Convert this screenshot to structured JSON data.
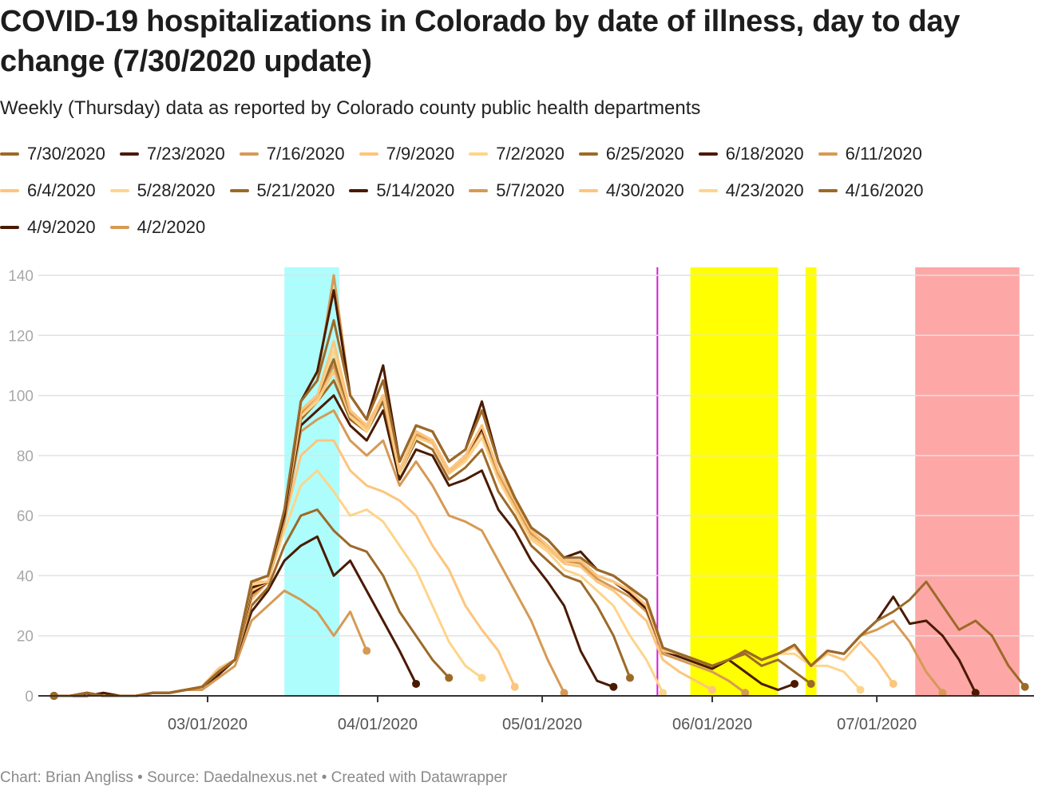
{
  "footer": "Chart: Brian Angliss • Source: Daedalnexus.net • Created with Datawrapper",
  "chart_data": {
    "type": "line",
    "title": "COVID-19 hospitalizations in Colorado by date of illness, day to day change (7/30/2020 update)",
    "subtitle": "Weekly (Thursday) data as reported by Colorado county public health departments",
    "x_start": "2020-02-02",
    "x_step_days": 3,
    "ylim": [
      0,
      140
    ],
    "y_ticks": [
      0,
      20,
      40,
      60,
      80,
      100,
      120,
      140
    ],
    "x_ticks": [
      {
        "date": "2020-03-01",
        "label": "03/01/2020"
      },
      {
        "date": "2020-04-01",
        "label": "04/01/2020"
      },
      {
        "date": "2020-05-01",
        "label": "05/01/2020"
      },
      {
        "date": "2020-06-01",
        "label": "06/01/2020"
      },
      {
        "date": "2020-07-01",
        "label": "07/01/2020"
      }
    ],
    "grid": true,
    "legend_position": "top",
    "highlights": [
      {
        "from": "2020-03-15",
        "to": "2020-03-25",
        "color": "#adfdfd"
      },
      {
        "from": "2020-05-28",
        "to": "2020-06-13",
        "color": "#ffff00"
      },
      {
        "from": "2020-06-18",
        "to": "2020-06-20",
        "color": "#ffff00"
      },
      {
        "from": "2020-07-08",
        "to": "2020-07-27",
        "color": "#fea7a7"
      }
    ],
    "markers": [
      {
        "date": "2020-05-22",
        "color": "#d81bd8"
      }
    ],
    "series": [
      {
        "name": "7/30/2020",
        "color": "#9c6a28",
        "values": [
          0,
          0,
          1,
          0,
          0,
          0,
          1,
          1,
          2,
          3,
          8,
          12,
          38,
          40,
          62,
          98,
          105,
          125,
          100,
          92,
          105,
          78,
          90,
          88,
          78,
          82,
          95,
          78,
          66,
          56,
          52,
          46,
          46,
          42,
          40,
          36,
          32,
          16,
          14,
          12,
          10,
          12,
          15,
          12,
          14,
          17,
          10,
          15,
          14,
          20,
          25,
          28,
          32,
          38,
          30,
          22,
          25,
          20,
          10,
          3
        ]
      },
      {
        "name": "7/23/2020",
        "color": "#4a1a00",
        "values": [
          0,
          0,
          1,
          0,
          0,
          0,
          1,
          1,
          2,
          3,
          8,
          12,
          38,
          40,
          60,
          98,
          108,
          135,
          100,
          92,
          110,
          78,
          90,
          88,
          78,
          82,
          98,
          78,
          66,
          56,
          52,
          46,
          48,
          42,
          40,
          36,
          32,
          16,
          14,
          12,
          10,
          12,
          15,
          12,
          14,
          17,
          10,
          15,
          14,
          20,
          25,
          33,
          24,
          25,
          20,
          12,
          1
        ]
      },
      {
        "name": "7/16/2020",
        "color": "#d69a55",
        "values": [
          0,
          0,
          1,
          0,
          0,
          0,
          1,
          1,
          2,
          3,
          8,
          12,
          38,
          40,
          60,
          98,
          105,
          140,
          100,
          92,
          105,
          78,
          90,
          88,
          78,
          82,
          95,
          78,
          66,
          56,
          52,
          46,
          46,
          42,
          40,
          36,
          32,
          16,
          14,
          12,
          10,
          12,
          15,
          12,
          14,
          17,
          10,
          15,
          14,
          20,
          22,
          25,
          18,
          8,
          1
        ]
      },
      {
        "name": "7/9/2020",
        "color": "#fdc57d",
        "values": [
          0,
          0,
          1,
          0,
          0,
          0,
          1,
          1,
          2,
          3,
          8,
          12,
          38,
          38,
          60,
          95,
          100,
          118,
          95,
          90,
          100,
          75,
          88,
          85,
          75,
          80,
          90,
          75,
          65,
          55,
          50,
          45,
          45,
          40,
          38,
          35,
          30,
          15,
          14,
          12,
          10,
          12,
          15,
          12,
          14,
          16,
          10,
          14,
          12,
          18,
          12,
          4
        ]
      },
      {
        "name": "7/2/2020",
        "color": "#fdd58a",
        "values": [
          0,
          0,
          1,
          0,
          0,
          0,
          1,
          1,
          2,
          3,
          8,
          12,
          37,
          38,
          60,
          95,
          100,
          115,
          95,
          90,
          100,
          75,
          88,
          85,
          75,
          80,
          90,
          75,
          65,
          55,
          50,
          45,
          45,
          40,
          38,
          35,
          30,
          15,
          14,
          12,
          10,
          12,
          15,
          12,
          14,
          14,
          10,
          10,
          8,
          2
        ]
      },
      {
        "name": "6/25/2020",
        "color": "#9c6a28",
        "values": [
          0,
          0,
          1,
          0,
          0,
          0,
          1,
          1,
          2,
          3,
          8,
          12,
          37,
          38,
          60,
          95,
          100,
          112,
          95,
          90,
          100,
          75,
          88,
          85,
          75,
          80,
          90,
          75,
          65,
          55,
          50,
          45,
          45,
          40,
          38,
          35,
          30,
          15,
          14,
          12,
          10,
          12,
          14,
          10,
          12,
          8,
          4
        ]
      },
      {
        "name": "6/18/2020",
        "color": "#4a1a00",
        "values": [
          0,
          0,
          1,
          0,
          0,
          0,
          1,
          1,
          2,
          3,
          8,
          12,
          36,
          38,
          60,
          95,
          100,
          112,
          95,
          90,
          100,
          75,
          88,
          85,
          75,
          80,
          89,
          75,
          65,
          55,
          50,
          45,
          45,
          40,
          38,
          34,
          29,
          15,
          13,
          11,
          9,
          12,
          8,
          4,
          2,
          4
        ]
      },
      {
        "name": "6/11/2020",
        "color": "#d69a55",
        "values": [
          0,
          0,
          1,
          0,
          0,
          0,
          1,
          1,
          2,
          3,
          8,
          12,
          36,
          38,
          60,
          94,
          100,
          110,
          94,
          90,
          100,
          75,
          87,
          85,
          75,
          80,
          88,
          74,
          64,
          54,
          50,
          45,
          44,
          39,
          36,
          33,
          28,
          14,
          12,
          10,
          8,
          5,
          1
        ]
      },
      {
        "name": "6/4/2020",
        "color": "#fdc57d",
        "values": [
          0,
          0,
          1,
          0,
          0,
          0,
          1,
          1,
          2,
          3,
          9,
          12,
          35,
          38,
          60,
          94,
          99,
          108,
          94,
          89,
          100,
          75,
          87,
          84,
          74,
          79,
          88,
          73,
          63,
          53,
          49,
          44,
          43,
          38,
          35,
          30,
          25,
          12,
          8,
          5,
          2
        ]
      },
      {
        "name": "5/28/2020",
        "color": "#fdd58a",
        "values": [
          0,
          0,
          1,
          0,
          0,
          0,
          1,
          1,
          2,
          3,
          9,
          12,
          35,
          38,
          60,
          93,
          98,
          108,
          93,
          88,
          100,
          74,
          86,
          84,
          74,
          78,
          86,
          72,
          62,
          52,
          48,
          42,
          40,
          35,
          30,
          20,
          12,
          1
        ]
      },
      {
        "name": "5/21/2020",
        "color": "#9c6a28",
        "values": [
          0,
          0,
          1,
          0,
          0,
          0,
          1,
          1,
          2,
          3,
          9,
          12,
          35,
          38,
          60,
          92,
          98,
          105,
          92,
          88,
          98,
          74,
          85,
          82,
          72,
          76,
          82,
          68,
          60,
          50,
          45,
          40,
          38,
          30,
          20,
          6
        ]
      },
      {
        "name": "5/14/2020",
        "color": "#4a1a00",
        "values": [
          0,
          0,
          1,
          0,
          0,
          0,
          1,
          1,
          2,
          3,
          9,
          12,
          34,
          38,
          60,
          90,
          95,
          100,
          90,
          85,
          95,
          72,
          82,
          80,
          70,
          72,
          75,
          62,
          55,
          45,
          38,
          30,
          15,
          5,
          3
        ]
      },
      {
        "name": "5/7/2020",
        "color": "#d69a55",
        "values": [
          0,
          0,
          1,
          0,
          0,
          0,
          1,
          1,
          2,
          3,
          9,
          12,
          33,
          38,
          58,
          88,
          92,
          95,
          85,
          80,
          85,
          70,
          78,
          70,
          60,
          58,
          55,
          45,
          35,
          25,
          12,
          1
        ]
      },
      {
        "name": "4/30/2020",
        "color": "#fdc57d",
        "values": [
          0,
          0,
          1,
          0,
          0,
          0,
          1,
          1,
          2,
          3,
          8,
          12,
          32,
          38,
          58,
          80,
          85,
          85,
          75,
          70,
          68,
          65,
          60,
          50,
          42,
          30,
          22,
          15,
          3
        ]
      },
      {
        "name": "4/23/2020",
        "color": "#fdd58a",
        "values": [
          0,
          0,
          1,
          0,
          0,
          0,
          1,
          1,
          2,
          3,
          8,
          12,
          32,
          38,
          55,
          70,
          75,
          68,
          60,
          62,
          58,
          50,
          42,
          30,
          18,
          10,
          6
        ]
      },
      {
        "name": "4/16/2020",
        "color": "#9c6a28",
        "values": [
          0,
          0,
          1,
          0,
          0,
          0,
          1,
          1,
          2,
          3,
          8,
          12,
          30,
          36,
          50,
          60,
          62,
          55,
          50,
          48,
          40,
          28,
          20,
          12,
          6
        ]
      },
      {
        "name": "4/9/2020",
        "color": "#4a1a00",
        "values": [
          0,
          0,
          0,
          1,
          0,
          0,
          1,
          1,
          2,
          3,
          7,
          12,
          28,
          35,
          45,
          50,
          53,
          40,
          45,
          35,
          25,
          15,
          4
        ]
      },
      {
        "name": "4/2/2020",
        "color": "#d69a55",
        "values": [
          0,
          0,
          1,
          0,
          0,
          0,
          1,
          1,
          2,
          2,
          6,
          10,
          25,
          30,
          35,
          32,
          28,
          20,
          28,
          15
        ]
      }
    ]
  }
}
